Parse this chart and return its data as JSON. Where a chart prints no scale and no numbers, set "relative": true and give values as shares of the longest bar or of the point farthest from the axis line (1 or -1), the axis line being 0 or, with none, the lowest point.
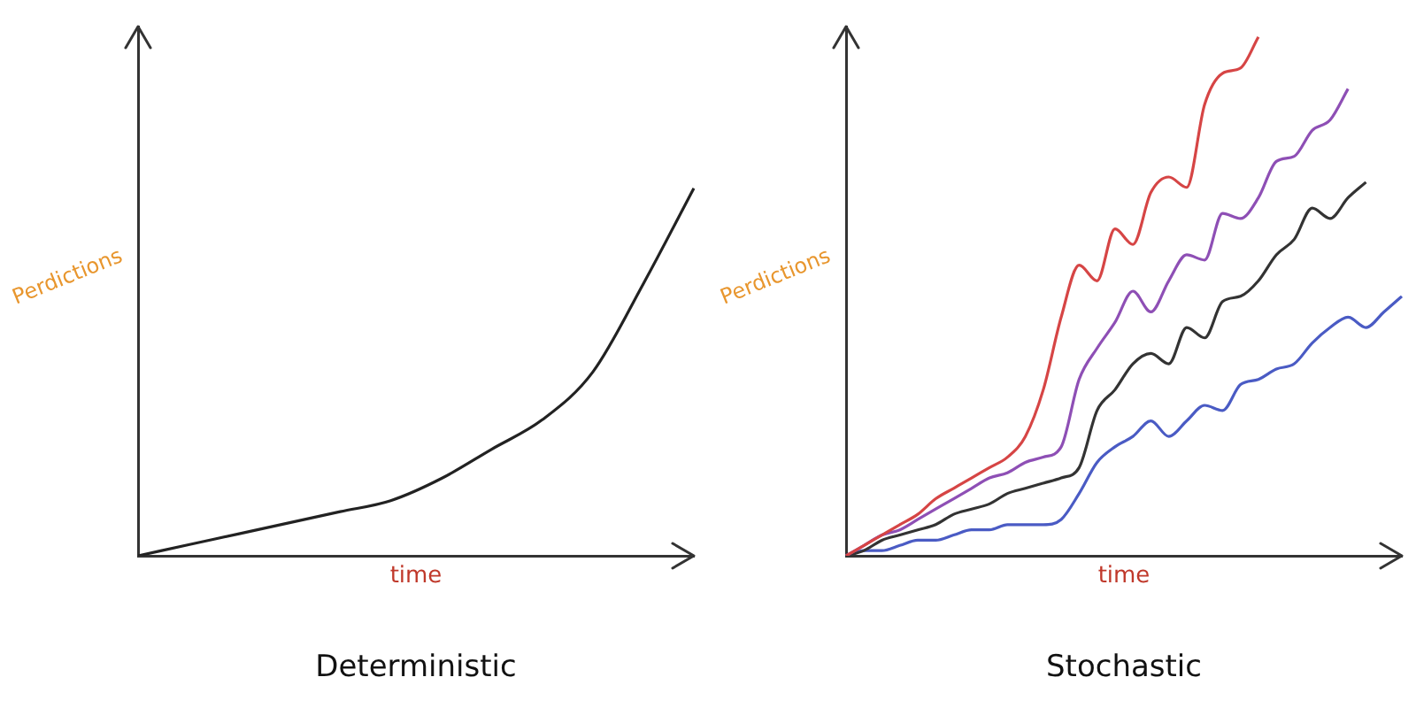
{
  "chart_data": [
    {
      "type": "line",
      "title": "Deterministic",
      "xlabel": "time",
      "ylabel": "Perdictions",
      "relative": true,
      "marker": "none",
      "categories": [
        null,
        null,
        null,
        null,
        null,
        null,
        null,
        null,
        null,
        null,
        null,
        null
      ],
      "series": [
        {
          "color": "#222222",
          "values": [
            0,
            0.03,
            0.06,
            0.09,
            0.12,
            0.15,
            0.21,
            0.29,
            0.37,
            0.5,
            0.74,
            1
          ]
        }
      ]
    },
    {
      "type": "line",
      "title": "Stochastic",
      "xlabel": "time",
      "ylabel": "Perdictions",
      "relative": true,
      "marker": "none",
      "categories": [
        null,
        null,
        null,
        null,
        null,
        null,
        null,
        null,
        null,
        null,
        null,
        null,
        null,
        null,
        null,
        null,
        null,
        null,
        null,
        null,
        null,
        null,
        null,
        null,
        null,
        null,
        null,
        null,
        null,
        null,
        null,
        null
      ],
      "series": [
        {
          "color": "#d64545",
          "values": [
            0,
            0.02,
            0.04,
            0.06,
            0.08,
            0.11,
            0.13,
            0.15,
            0.17,
            0.19,
            0.23,
            0.32,
            0.46,
            0.56,
            0.53,
            0.63,
            0.6,
            0.7,
            0.73,
            0.71,
            0.87,
            0.93,
            0.94,
            1,
            null,
            null,
            null,
            null,
            null,
            null,
            null,
            null
          ]
        },
        {
          "color": "#8e4fb5",
          "values": [
            0,
            0.02,
            0.04,
            0.05,
            0.07,
            0.09,
            0.11,
            0.13,
            0.15,
            0.16,
            0.18,
            0.19,
            0.21,
            0.34,
            0.4,
            0.45,
            0.51,
            0.47,
            0.53,
            0.58,
            0.57,
            0.66,
            0.65,
            0.69,
            0.76,
            0.77,
            0.82,
            0.84,
            0.9,
            null,
            null,
            null
          ]
        },
        {
          "color": "#333333",
          "values": [
            0,
            0.01,
            0.03,
            0.04,
            0.05,
            0.06,
            0.08,
            0.09,
            0.1,
            0.12,
            0.13,
            0.14,
            0.15,
            0.17,
            0.28,
            0.32,
            0.37,
            0.39,
            0.37,
            0.44,
            0.42,
            0.49,
            0.5,
            0.53,
            0.58,
            0.61,
            0.67,
            0.65,
            0.69,
            0.72,
            null,
            null
          ]
        },
        {
          "color": "#4a5bc4",
          "values": [
            0,
            0.01,
            0.01,
            0.02,
            0.03,
            0.03,
            0.04,
            0.05,
            0.05,
            0.06,
            0.06,
            0.06,
            0.07,
            0.12,
            0.18,
            0.21,
            0.23,
            0.26,
            0.23,
            0.26,
            0.29,
            0.28,
            0.33,
            0.34,
            0.36,
            0.37,
            0.41,
            0.44,
            0.46,
            0.44,
            0.47,
            0.5
          ]
        }
      ]
    }
  ]
}
